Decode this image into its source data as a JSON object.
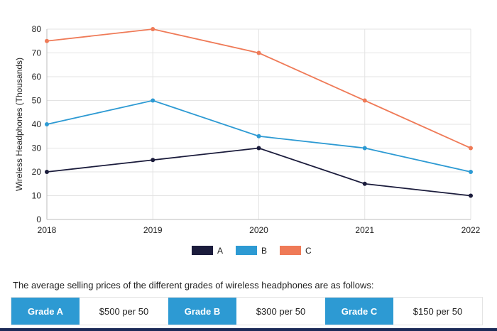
{
  "chart_data": {
    "type": "line",
    "x": [
      "2018",
      "2019",
      "2020",
      "2021",
      "2022"
    ],
    "ylabel": "Wireless Headphones (Thousands)",
    "xlabel": "",
    "ylim": [
      0,
      80
    ],
    "yticks": [
      0,
      10,
      20,
      30,
      40,
      50,
      60,
      70,
      80
    ],
    "grid": true,
    "legend_position": "bottom-center",
    "series": [
      {
        "name": "A",
        "color": "#1b1c3c",
        "values": [
          20,
          25,
          30,
          15,
          10
        ]
      },
      {
        "name": "B",
        "color": "#2d9ad3",
        "values": [
          40,
          50,
          35,
          30,
          20
        ]
      },
      {
        "name": "C",
        "color": "#ef7a57",
        "values": [
          75,
          80,
          70,
          50,
          30
        ]
      }
    ]
  },
  "note": "The average selling prices of the different grades of wireless headphones are as follows:",
  "prices": [
    {
      "grade": "Grade A",
      "price": "$500 per 50"
    },
    {
      "grade": "Grade B",
      "price": "$300 per 50"
    },
    {
      "grade": "Grade C",
      "price": "$150 per 50"
    }
  ]
}
